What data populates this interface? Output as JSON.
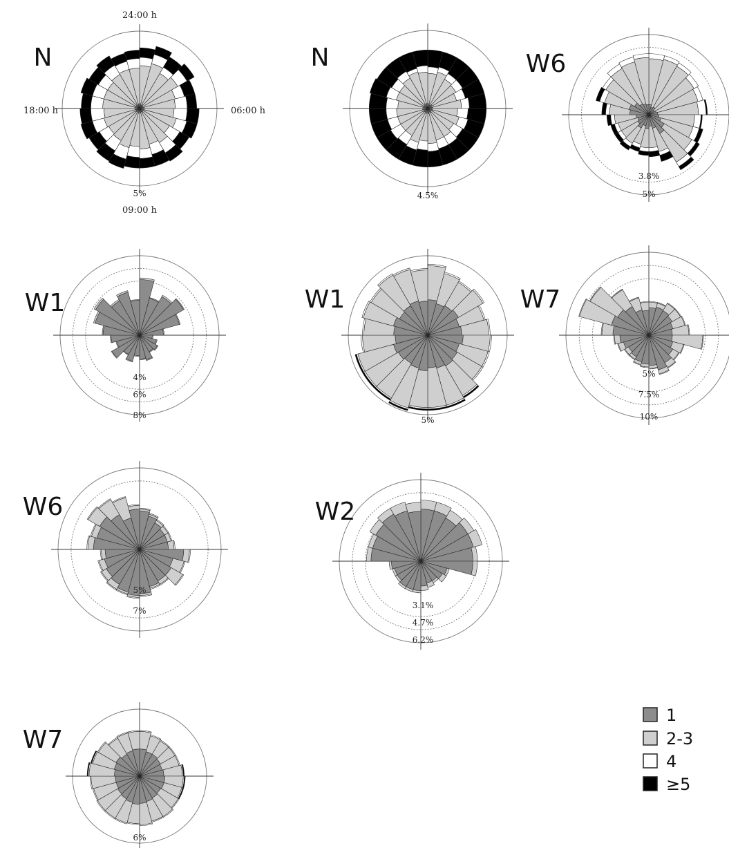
{
  "legend": {
    "items": [
      {
        "label": "1",
        "color": "#8c8c8c"
      },
      {
        "label": "2-3",
        "color": "#cfcfcf"
      },
      {
        "label": "4",
        "color": "#ffffff"
      },
      {
        "label": "≥5",
        "color": "#000000"
      }
    ]
  },
  "hours": {
    "top": "24:00 h",
    "left": "18:00 h",
    "right": "06:00 h",
    "bottom": "09:00 h"
  },
  "chart_data": [
    {
      "type": "polar-stacked-bar",
      "label": "N",
      "rings": [
        "5%"
      ],
      "sectors": 24,
      "series": [
        {
          "name": "1",
          "values": [
            0.4,
            0.3,
            0.4,
            0.3,
            0.3,
            0.4,
            0.3,
            0.4,
            0.3,
            0.4,
            0.3,
            0.4,
            0.3,
            0.4,
            0.3,
            0.4,
            0.3,
            0.4,
            0.3,
            0.4,
            0.3,
            0.4,
            0.3,
            0.4
          ]
        },
        {
          "name": "2-3",
          "values": [
            3.2,
            3.6,
            3.0,
            3.4,
            2.8,
            2.6,
            2.6,
            2.8,
            2.6,
            2.9,
            2.8,
            3.0,
            2.9,
            3.0,
            2.8,
            2.6,
            2.8,
            2.6,
            2.8,
            2.7,
            2.8,
            2.9,
            3.1,
            3.0
          ]
        },
        {
          "name": "4",
          "values": [
            0.7,
            0.8,
            0.6,
            0.9,
            0.8,
            1.0,
            1.1,
            0.9,
            1.0,
            1.0,
            0.9,
            0.8,
            0.9,
            1.0,
            1.0,
            0.9,
            1.0,
            1.1,
            1.0,
            1.0,
            0.9,
            0.9,
            0.7,
            0.8
          ]
        },
        {
          "name": "≥5",
          "values": [
            0.8,
            0.7,
            1.0,
            0.7,
            0.9,
            0.8,
            1.0,
            0.9,
            0.9,
            0.8,
            1.0,
            0.8,
            0.9,
            0.8,
            1.0,
            1.0,
            1.0,
            0.9,
            0.8,
            1.0,
            0.9,
            0.9,
            0.7,
            0.7
          ]
        }
      ]
    },
    {
      "type": "polar-stacked-bar",
      "label": "N",
      "rings": [
        "4.5%"
      ],
      "sectors": 24,
      "series": [
        {
          "name": "1",
          "values": [
            0.3,
            0.4,
            0.3,
            0.4,
            0.3,
            0.4,
            0.3,
            0.4,
            0.3,
            0.4,
            0.3,
            0.4,
            0.3,
            0.4,
            0.3,
            0.4,
            0.3,
            0.4,
            0.3,
            0.4,
            0.3,
            0.4,
            0.3,
            0.4
          ]
        },
        {
          "name": "2-3",
          "values": [
            2.4,
            2.5,
            2.3,
            2.1,
            2.0,
            2.2,
            2.0,
            2.1,
            2.0,
            2.1,
            2.2,
            2.3,
            2.2,
            2.3,
            2.1,
            2.0,
            2.1,
            2.0,
            2.0,
            2.1,
            2.2,
            2.3,
            2.6,
            2.4
          ]
        },
        {
          "name": "4",
          "values": [
            0.5,
            0.4,
            0.5,
            0.6,
            0.7,
            0.6,
            0.8,
            0.7,
            0.8,
            0.7,
            0.7,
            0.6,
            0.7,
            0.6,
            0.8,
            0.9,
            0.8,
            0.8,
            0.9,
            0.8,
            0.7,
            0.6,
            0.3,
            0.5
          ]
        },
        {
          "name": "≥5",
          "values": [
            1.3,
            1.2,
            1.4,
            1.4,
            1.5,
            1.3,
            1.4,
            1.3,
            1.4,
            1.3,
            1.3,
            1.2,
            1.3,
            1.2,
            1.3,
            1.2,
            1.3,
            1.3,
            1.3,
            1.3,
            1.3,
            1.2,
            1.3,
            1.2
          ]
        }
      ]
    },
    {
      "type": "polar-stacked-bar",
      "label": "W6",
      "rings": [
        "3.8%",
        "5%"
      ],
      "sectors": 24,
      "series": [
        {
          "name": "1",
          "values": [
            0.8,
            0.6,
            0.7,
            0.5,
            0.6,
            0.7,
            0.8,
            1.0,
            1.4,
            1.7,
            1.1,
            0.9,
            1.1,
            0.9,
            1.2,
            1.0,
            0.9,
            1.0,
            1.5,
            1.6,
            1.3,
            1.0,
            0.9,
            0.8
          ]
        },
        {
          "name": "2-3",
          "values": [
            3.6,
            3.9,
            3.7,
            3.6,
            3.4,
            3.2,
            2.8,
            2.6,
            2.5,
            2.6,
            1.9,
            1.7,
            1.5,
            1.5,
            1.4,
            1.5,
            1.6,
            1.7,
            1.6,
            2.0,
            2.6,
            3.2,
            3.4,
            3.7
          ]
        },
        {
          "name": "4",
          "values": [
            0.4,
            0.3,
            0.3,
            0.4,
            0.4,
            0.6,
            0.5,
            0.5,
            0.4,
            0.4,
            0.3,
            0.3,
            0.3,
            0.3,
            0.3,
            0.3,
            0.3,
            0.3,
            0.3,
            0.4,
            0.3,
            0.4,
            0.4,
            0.3
          ]
        },
        {
          "name": "≥5",
          "values": [
            0.0,
            0.0,
            0.0,
            0.0,
            0.0,
            0.1,
            0.1,
            0.3,
            0.3,
            0.3,
            0.5,
            0.4,
            0.3,
            0.3,
            0.3,
            0.3,
            0.3,
            0.3,
            0.3,
            0.3,
            0.0,
            0.0,
            0.0,
            0.0
          ]
        }
      ]
    },
    {
      "type": "polar-stacked-bar",
      "label": "W1",
      "rings": [
        "4%",
        "6%",
        "8%"
      ],
      "sectors": 24,
      "series": [
        {
          "name": "1",
          "values": [
            7.0,
            4.8,
            5.6,
            6.4,
            5.2,
            3.0,
            1.6,
            2.2,
            2.6,
            2.4,
            3.2,
            3.0,
            2.6,
            3.4,
            2.8,
            4.0,
            3.0,
            3.6,
            4.6,
            5.8,
            6.4,
            5.0,
            5.6,
            4.4
          ]
        },
        {
          "name": "2-3",
          "values": [
            0.2,
            0.1,
            0.2,
            0.1,
            0.1,
            0.1,
            0.1,
            0.1,
            0.1,
            0.1,
            0.1,
            0.1,
            0.1,
            0.1,
            0.1,
            0.1,
            0.1,
            0.1,
            0.1,
            0.2,
            0.2,
            0.2,
            0.2,
            0.1
          ]
        },
        {
          "name": "4",
          "values": [
            0,
            0,
            0,
            0,
            0,
            0,
            0,
            0,
            0,
            0,
            0,
            0,
            0,
            0,
            0,
            0,
            0,
            0,
            0,
            0,
            0,
            0,
            0,
            0
          ]
        },
        {
          "name": "≥5",
          "values": [
            0,
            0,
            0,
            0,
            0,
            0,
            0,
            0,
            0,
            0,
            0,
            0,
            0,
            0,
            0,
            0,
            0,
            0,
            0,
            0,
            0,
            0,
            0,
            0
          ]
        }
      ]
    },
    {
      "type": "polar-stacked-bar",
      "label": "W1",
      "rings": [
        "5%"
      ],
      "sectors": 24,
      "series": [
        {
          "name": "1",
          "values": [
            2.5,
            2.3,
            2.4,
            2.5,
            2.3,
            2.4,
            2.5,
            2.3,
            2.4,
            2.5,
            2.4,
            2.3,
            2.5,
            2.4,
            2.3,
            2.4,
            2.5,
            2.3,
            2.4,
            2.5,
            2.3,
            2.4,
            2.5,
            2.4
          ]
        },
        {
          "name": "2-3",
          "values": [
            2.4,
            2.2,
            1.9,
            2.0,
            1.8,
            1.9,
            1.9,
            2.1,
            2.0,
            2.4,
            2.7,
            2.8,
            2.6,
            2.9,
            2.8,
            2.7,
            2.6,
            2.3,
            2.1,
            2.2,
            2.3,
            2.5,
            2.3,
            2.2
          ]
        },
        {
          "name": "4",
          "values": [
            0.1,
            0.1,
            0.1,
            0.1,
            0.1,
            0.1,
            0.1,
            0.1,
            0.1,
            0.1,
            0.1,
            0.1,
            0.1,
            0.1,
            0.1,
            0.1,
            0.1,
            0.1,
            0.1,
            0.1,
            0.1,
            0.1,
            0.1,
            0.1
          ]
        },
        {
          "name": "≥5",
          "values": [
            0.0,
            0.0,
            0.0,
            0.0,
            0.0,
            0.0,
            0.0,
            0.0,
            0.0,
            0.1,
            0.1,
            0.1,
            0.1,
            0.1,
            0.1,
            0.1,
            0.1,
            0.0,
            0.0,
            0.0,
            0.0,
            0.0,
            0.0,
            0.0
          ]
        }
      ]
    },
    {
      "type": "polar-stacked-bar",
      "label": "W7",
      "rings": [
        "5%",
        "7.5%",
        "10%"
      ],
      "sectors": 24,
      "series": [
        {
          "name": "1",
          "values": [
            4.0,
            4.2,
            4.1,
            3.9,
            3.6,
            3.4,
            3.4,
            3.6,
            4.0,
            4.6,
            5.2,
            4.4,
            4.2,
            4.0,
            3.6,
            3.4,
            3.8,
            4.2,
            5.2,
            5.6,
            5.2,
            4.8,
            3.8,
            3.6
          ]
        },
        {
          "name": "2-3",
          "values": [
            0.8,
            0.6,
            1.2,
            1.4,
            1.8,
            2.4,
            4.4,
            1.6,
            1.0,
            0.8,
            0.6,
            0.4,
            0.4,
            0.4,
            0.4,
            0.6,
            0.8,
            0.8,
            1.6,
            4.8,
            4.6,
            2.8,
            1.8,
            1.2
          ]
        },
        {
          "name": "4",
          "values": [
            0.1,
            0.1,
            0.1,
            0.1,
            0.1,
            0.1,
            0.1,
            0.1,
            0.1,
            0.1,
            0.1,
            0.1,
            0.1,
            0.1,
            0.1,
            0.1,
            0.1,
            0.1,
            0.1,
            0.1,
            0.1,
            0.1,
            0.1,
            0.1
          ]
        },
        {
          "name": "≥5",
          "values": [
            0,
            0,
            0,
            0,
            0,
            0,
            0,
            0,
            0,
            0,
            0,
            0,
            0,
            0,
            0,
            0,
            0,
            0,
            0,
            0,
            0,
            0,
            0,
            0
          ]
        }
      ]
    },
    {
      "type": "polar-stacked-bar",
      "label": "W6",
      "rings": [
        "5%",
        "7%"
      ],
      "sectors": 24,
      "series": [
        {
          "name": "1",
          "values": [
            4.0,
            3.6,
            3.2,
            3.0,
            3.0,
            3.0,
            4.6,
            3.6,
            3.8,
            3.8,
            4.0,
            4.6,
            4.8,
            4.6,
            4.2,
            4.0,
            3.8,
            3.6,
            4.8,
            4.6,
            4.8,
            4.2,
            3.4,
            4.2
          ]
        },
        {
          "name": "2-3",
          "values": [
            0.2,
            0.2,
            0.3,
            0.4,
            0.4,
            0.6,
            0.6,
            1.2,
            1.4,
            0.4,
            0.2,
            0.2,
            0.2,
            0.2,
            0.6,
            0.6,
            0.6,
            0.4,
            0.6,
            0.6,
            1.4,
            1.8,
            2.2,
            0.4
          ]
        },
        {
          "name": "4",
          "values": [
            0.1,
            0.1,
            0.1,
            0.1,
            0.1,
            0.1,
            0.1,
            0.1,
            0.1,
            0.1,
            0.1,
            0.1,
            0.1,
            0.1,
            0.1,
            0.1,
            0.1,
            0.1,
            0.1,
            0.1,
            0.1,
            0.1,
            0.1,
            0.1
          ]
        },
        {
          "name": "≥5",
          "values": [
            0,
            0,
            0,
            0,
            0,
            0,
            0,
            0,
            0,
            0,
            0,
            0,
            0,
            0,
            0,
            0,
            0,
            0,
            0,
            0,
            0,
            0,
            0,
            0
          ]
        }
      ]
    },
    {
      "type": "polar-stacked-bar",
      "label": "W2",
      "rings": [
        "3.1%",
        "4.7%",
        "6.2%"
      ],
      "sectors": 24,
      "series": [
        {
          "name": "1",
          "values": [
            4.6,
            4.6,
            4.4,
            4.8,
            4.8,
            4.6,
            4.6,
            2.4,
            2.2,
            2.0,
            2.0,
            2.2,
            2.6,
            2.6,
            2.6,
            2.4,
            2.4,
            2.6,
            4.4,
            4.4,
            4.6,
            4.8,
            4.6,
            4.4
          ]
        },
        {
          "name": "2-3",
          "values": [
            0.8,
            0.8,
            0.8,
            0.6,
            0.8,
            0.4,
            0.4,
            0.2,
            0.4,
            0.2,
            0.4,
            0.4,
            0.2,
            0.2,
            0.2,
            0.2,
            0.2,
            0.2,
            0.4,
            0.4,
            0.6,
            0.6,
            0.8,
            0.8
          ]
        },
        {
          "name": "4",
          "values": [
            0,
            0,
            0,
            0,
            0,
            0,
            0,
            0,
            0,
            0,
            0,
            0,
            0,
            0,
            0,
            0,
            0,
            0,
            0,
            0,
            0,
            0,
            0,
            0
          ]
        },
        {
          "name": "≥5",
          "values": [
            0,
            0,
            0,
            0,
            0,
            0,
            0,
            0,
            0,
            0,
            0,
            0,
            0,
            0,
            0,
            0,
            0,
            0,
            0,
            0,
            0,
            0,
            0,
            0
          ]
        }
      ]
    },
    {
      "type": "polar-stacked-bar",
      "label": "W7",
      "rings": [
        "6%"
      ],
      "sectors": 24,
      "series": [
        {
          "name": "1",
          "values": [
            2.8,
            2.6,
            2.6,
            2.5,
            2.4,
            2.5,
            2.6,
            2.6,
            2.5,
            2.6,
            2.7,
            2.8,
            2.9,
            2.8,
            2.7,
            2.6,
            2.5,
            2.5,
            2.6,
            2.7,
            2.8,
            2.6,
            2.7,
            2.8
          ]
        },
        {
          "name": "2-3",
          "values": [
            1.8,
            1.7,
            1.6,
            1.7,
            1.8,
            1.9,
            1.9,
            1.9,
            2.1,
            2.2,
            2.1,
            2.2,
            2.0,
            2.2,
            2.3,
            2.4,
            2.4,
            2.5,
            2.6,
            2.3,
            2.1,
            1.9,
            1.9,
            1.8
          ]
        },
        {
          "name": "4",
          "values": [
            0.1,
            0.1,
            0.1,
            0.1,
            0.1,
            0.1,
            0.1,
            0.1,
            0.1,
            0.1,
            0.1,
            0.1,
            0.1,
            0.1,
            0.1,
            0.1,
            0.1,
            0.1,
            0.1,
            0.1,
            0.1,
            0.1,
            0.1,
            0.1
          ]
        },
        {
          "name": "≥5",
          "values": [
            0.0,
            0.0,
            0.0,
            0.0,
            0.0,
            0.1,
            0.1,
            0.1,
            0.0,
            0.0,
            0.0,
            0.0,
            0.0,
            0.0,
            0.0,
            0.0,
            0.0,
            0.0,
            0.1,
            0.1,
            0.0,
            0.0,
            0.0,
            0.0
          ]
        }
      ]
    }
  ]
}
